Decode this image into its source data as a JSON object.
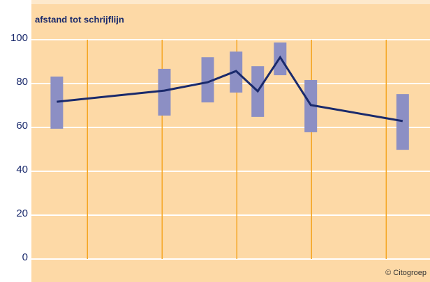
{
  "chart_data": {
    "type": "line",
    "title": "afstand tot schrijflijn",
    "credit": "© Citogroep",
    "x": [
      0.59,
      2.03,
      2.61,
      2.99,
      3.28,
      3.58,
      3.99,
      5.22
    ],
    "values": [
      71.7,
      76.8,
      80.6,
      85.7,
      76.5,
      92,
      70.2,
      62.9
    ],
    "lows": [
      59.4,
      65.4,
      71.4,
      75.9,
      64.8,
      83.8,
      57.8,
      49.8
    ],
    "highs": [
      83.2,
      86.7,
      92,
      94.6,
      87.9,
      98.7,
      81.6,
      75.2
    ],
    "line_color": "#1a2a6c",
    "range_color": "#8c8fc4",
    "xlim": [
      0.25,
      5.53
    ],
    "xticks": [
      1,
      2,
      3,
      4,
      5
    ],
    "ylim": [
      0,
      100
    ],
    "yticks": [
      0,
      20,
      40,
      60,
      80,
      100
    ],
    "grid": true
  }
}
